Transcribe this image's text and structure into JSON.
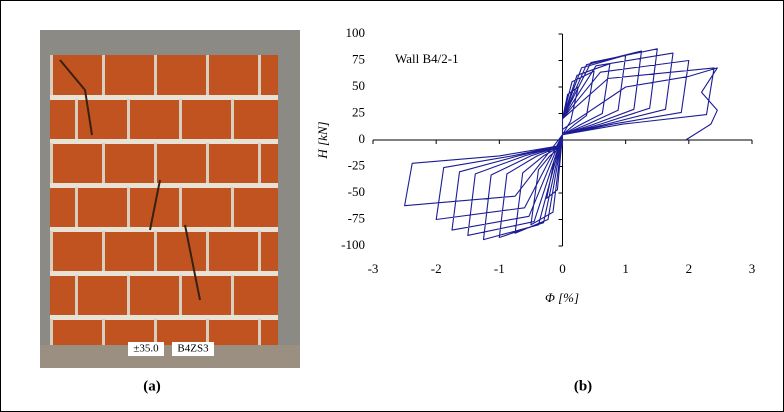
{
  "photo": {
    "labels": [
      "±35.0",
      "B4ZS3"
    ],
    "caption": "(a)"
  },
  "chart_data": {
    "type": "line",
    "caption": "(b)",
    "annotation": "Wall B4/2-1",
    "x_label": "Φ [%]",
    "y_label": "H [kN]",
    "x": [
      0,
      0.08,
      0.25,
      0.13,
      0.1,
      0,
      -0.08,
      -0.25,
      -0.13,
      -0.1,
      0,
      0,
      0.15,
      0.5,
      0.38,
      0.2,
      0,
      -0.15,
      -0.5,
      -0.38,
      -0.2,
      0,
      0,
      0.23,
      0.75,
      0.63,
      0.3,
      0,
      -0.23,
      -0.75,
      -0.63,
      -0.3,
      0,
      0,
      0.3,
      1,
      0.88,
      0.4,
      0,
      -0.3,
      -1,
      -0.88,
      -0.4,
      0,
      0,
      0.38,
      1.25,
      1.13,
      0.5,
      0,
      -0.38,
      -1.25,
      -1.13,
      -0.5,
      0,
      0,
      0.45,
      1.5,
      1.38,
      0.6,
      0,
      -0.45,
      -1.5,
      -1.38,
      -0.6,
      0,
      0,
      0.53,
      1.75,
      1.63,
      0.7,
      0,
      -0.53,
      -1.75,
      -1.63,
      -0.7,
      0,
      0,
      0.6,
      2,
      1.88,
      0.8,
      0,
      -0.6,
      -2,
      -1.88,
      -0.8,
      0,
      0,
      0.72,
      2.4,
      2.28,
      0.96,
      0,
      -0.75,
      -2.5,
      -2.38,
      -1,
      0,
      0,
      1,
      2,
      2.45,
      2.2,
      2.45,
      2.35,
      1.95
    ],
    "values": [
      20,
      43,
      50,
      18,
      15,
      5,
      -47,
      -55,
      -19,
      -15,
      -5,
      20,
      55,
      65,
      23,
      15,
      5,
      -68,
      -80,
      -28,
      -15,
      -5,
      20,
      61,
      72,
      25,
      15,
      5,
      -75,
      -88,
      -31,
      -15,
      -5,
      20,
      68,
      80,
      28,
      15,
      5,
      -78,
      -92,
      -32,
      -15,
      -5,
      20,
      71,
      84,
      29,
      15,
      5,
      -80,
      -94,
      -33,
      -15,
      -5,
      20,
      73,
      86,
      30,
      15,
      5,
      -77,
      -90,
      -32,
      -15,
      -5,
      20,
      70,
      82,
      29,
      15,
      5,
      -72,
      -85,
      -30,
      -15,
      -5,
      20,
      64,
      75,
      26,
      15,
      5,
      -64,
      -75,
      -26,
      -15,
      -5,
      20,
      58,
      68,
      24,
      15,
      5,
      -53,
      -62,
      -22,
      -15,
      -5,
      10,
      50,
      60,
      68,
      45,
      28,
      15,
      0
    ],
    "color": "#1c1c94",
    "xlim": [
      -3,
      3
    ],
    "xticks": [
      -3,
      -2,
      -1,
      0,
      1,
      2,
      3
    ],
    "ylim": [
      -100,
      100
    ],
    "yticks": [
      -100,
      -75,
      -50,
      -25,
      0,
      25,
      50,
      75,
      100
    ],
    "grid": false
  }
}
